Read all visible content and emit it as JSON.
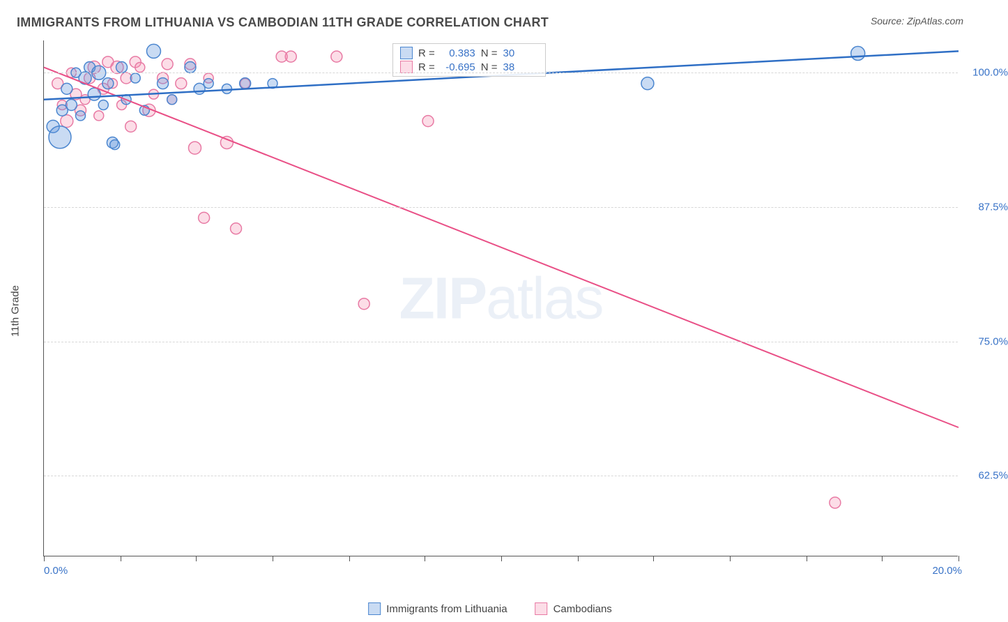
{
  "title": "IMMIGRANTS FROM LITHUANIA VS CAMBODIAN 11TH GRADE CORRELATION CHART",
  "source_prefix": "Source: ",
  "source_name": "ZipAtlas.com",
  "watermark_bold": "ZIP",
  "watermark_rest": "atlas",
  "axes": {
    "ylabel": "11th Grade",
    "xmin": 0.0,
    "xmax": 20.0,
    "ymin": 55.0,
    "ymax": 103.0,
    "x_tick_positions": [
      0,
      1.67,
      3.33,
      5.0,
      6.67,
      8.33,
      10.0,
      11.67,
      13.33,
      15.0,
      16.67,
      18.33,
      20.0
    ],
    "x_end_labels": [
      "0.0%",
      "20.0%"
    ],
    "y_gridlines": [
      62.5,
      75.0,
      87.5,
      100.0
    ],
    "y_tick_labels": [
      "62.5%",
      "75.0%",
      "87.5%",
      "100.0%"
    ]
  },
  "colors": {
    "blue_fill": "rgba(99,153,222,0.35)",
    "blue_stroke": "#4b86cf",
    "blue_line": "#2f6fc5",
    "pink_fill": "rgba(244,143,177,0.30)",
    "pink_stroke": "#e87aa4",
    "pink_line": "#e94f86",
    "axis_text": "#3973c7",
    "grid": "#d7d7d7",
    "text": "#4a4a4a"
  },
  "series_a": {
    "name": "Immigrants from Lithuania",
    "r_label": "R =",
    "r_value": "0.383",
    "n_label": "N =",
    "n_value": "30",
    "trend": {
      "x1": 0.0,
      "y1": 97.5,
      "x2": 20.0,
      "y2": 102.0
    },
    "points": [
      {
        "x": 0.2,
        "y": 95.0,
        "r": 9
      },
      {
        "x": 0.35,
        "y": 94.0,
        "r": 16
      },
      {
        "x": 0.4,
        "y": 96.5,
        "r": 8
      },
      {
        "x": 0.5,
        "y": 98.5,
        "r": 8
      },
      {
        "x": 0.6,
        "y": 97.0,
        "r": 8
      },
      {
        "x": 0.7,
        "y": 100.0,
        "r": 7
      },
      {
        "x": 0.8,
        "y": 96.0,
        "r": 7
      },
      {
        "x": 0.9,
        "y": 99.5,
        "r": 9
      },
      {
        "x": 1.0,
        "y": 100.5,
        "r": 8
      },
      {
        "x": 1.1,
        "y": 98.0,
        "r": 9
      },
      {
        "x": 1.2,
        "y": 100.0,
        "r": 10
      },
      {
        "x": 1.3,
        "y": 97.0,
        "r": 7
      },
      {
        "x": 1.4,
        "y": 99.0,
        "r": 8
      },
      {
        "x": 1.5,
        "y": 93.5,
        "r": 8
      },
      {
        "x": 1.55,
        "y": 93.3,
        "r": 7
      },
      {
        "x": 1.7,
        "y": 100.5,
        "r": 8
      },
      {
        "x": 1.8,
        "y": 97.5,
        "r": 7
      },
      {
        "x": 2.0,
        "y": 99.5,
        "r": 7
      },
      {
        "x": 2.2,
        "y": 96.5,
        "r": 7
      },
      {
        "x": 2.4,
        "y": 102.0,
        "r": 10
      },
      {
        "x": 2.6,
        "y": 99.0,
        "r": 8
      },
      {
        "x": 2.8,
        "y": 97.5,
        "r": 7
      },
      {
        "x": 3.2,
        "y": 100.5,
        "r": 8
      },
      {
        "x": 3.4,
        "y": 98.5,
        "r": 8
      },
      {
        "x": 3.6,
        "y": 99.0,
        "r": 7
      },
      {
        "x": 4.0,
        "y": 98.5,
        "r": 7
      },
      {
        "x": 4.4,
        "y": 99.0,
        "r": 8
      },
      {
        "x": 5.0,
        "y": 99.0,
        "r": 7
      },
      {
        "x": 13.2,
        "y": 99.0,
        "r": 9
      },
      {
        "x": 17.8,
        "y": 101.8,
        "r": 10
      }
    ]
  },
  "series_b": {
    "name": "Cambodians",
    "r_label": "R =",
    "r_value": "-0.695",
    "n_label": "N =",
    "n_value": "38",
    "trend": {
      "x1": 0.0,
      "y1": 100.5,
      "x2": 20.0,
      "y2": 67.0
    },
    "points": [
      {
        "x": 0.3,
        "y": 99.0,
        "r": 8
      },
      {
        "x": 0.4,
        "y": 97.0,
        "r": 7
      },
      {
        "x": 0.5,
        "y": 95.5,
        "r": 9
      },
      {
        "x": 0.6,
        "y": 100.0,
        "r": 7
      },
      {
        "x": 0.7,
        "y": 98.0,
        "r": 8
      },
      {
        "x": 0.8,
        "y": 96.5,
        "r": 8
      },
      {
        "x": 0.9,
        "y": 97.5,
        "r": 7
      },
      {
        "x": 1.0,
        "y": 99.5,
        "r": 8
      },
      {
        "x": 1.1,
        "y": 100.5,
        "r": 9
      },
      {
        "x": 1.2,
        "y": 96.0,
        "r": 7
      },
      {
        "x": 1.3,
        "y": 98.5,
        "r": 8
      },
      {
        "x": 1.4,
        "y": 101.0,
        "r": 8
      },
      {
        "x": 1.5,
        "y": 99.0,
        "r": 7
      },
      {
        "x": 1.6,
        "y": 100.5,
        "r": 9
      },
      {
        "x": 1.7,
        "y": 97.0,
        "r": 7
      },
      {
        "x": 1.8,
        "y": 99.5,
        "r": 8
      },
      {
        "x": 1.9,
        "y": 95.0,
        "r": 8
      },
      {
        "x": 2.0,
        "y": 101.0,
        "r": 8
      },
      {
        "x": 2.1,
        "y": 100.5,
        "r": 7
      },
      {
        "x": 2.3,
        "y": 96.5,
        "r": 9
      },
      {
        "x": 2.4,
        "y": 98.0,
        "r": 7
      },
      {
        "x": 2.6,
        "y": 99.5,
        "r": 8
      },
      {
        "x": 2.7,
        "y": 100.8,
        "r": 8
      },
      {
        "x": 2.8,
        "y": 97.5,
        "r": 7
      },
      {
        "x": 3.0,
        "y": 99.0,
        "r": 8
      },
      {
        "x": 3.2,
        "y": 100.8,
        "r": 8
      },
      {
        "x": 3.3,
        "y": 93.0,
        "r": 9
      },
      {
        "x": 3.5,
        "y": 86.5,
        "r": 8
      },
      {
        "x": 3.6,
        "y": 99.5,
        "r": 7
      },
      {
        "x": 4.0,
        "y": 93.5,
        "r": 9
      },
      {
        "x": 4.2,
        "y": 85.5,
        "r": 8
      },
      {
        "x": 4.4,
        "y": 99.0,
        "r": 7
      },
      {
        "x": 5.2,
        "y": 101.5,
        "r": 8
      },
      {
        "x": 5.4,
        "y": 101.5,
        "r": 8
      },
      {
        "x": 6.4,
        "y": 101.5,
        "r": 8
      },
      {
        "x": 7.0,
        "y": 78.5,
        "r": 8
      },
      {
        "x": 8.4,
        "y": 95.5,
        "r": 8
      },
      {
        "x": 17.3,
        "y": 60.0,
        "r": 8
      }
    ]
  },
  "legend": {
    "a": "Immigrants from Lithuania",
    "b": "Cambodians"
  }
}
